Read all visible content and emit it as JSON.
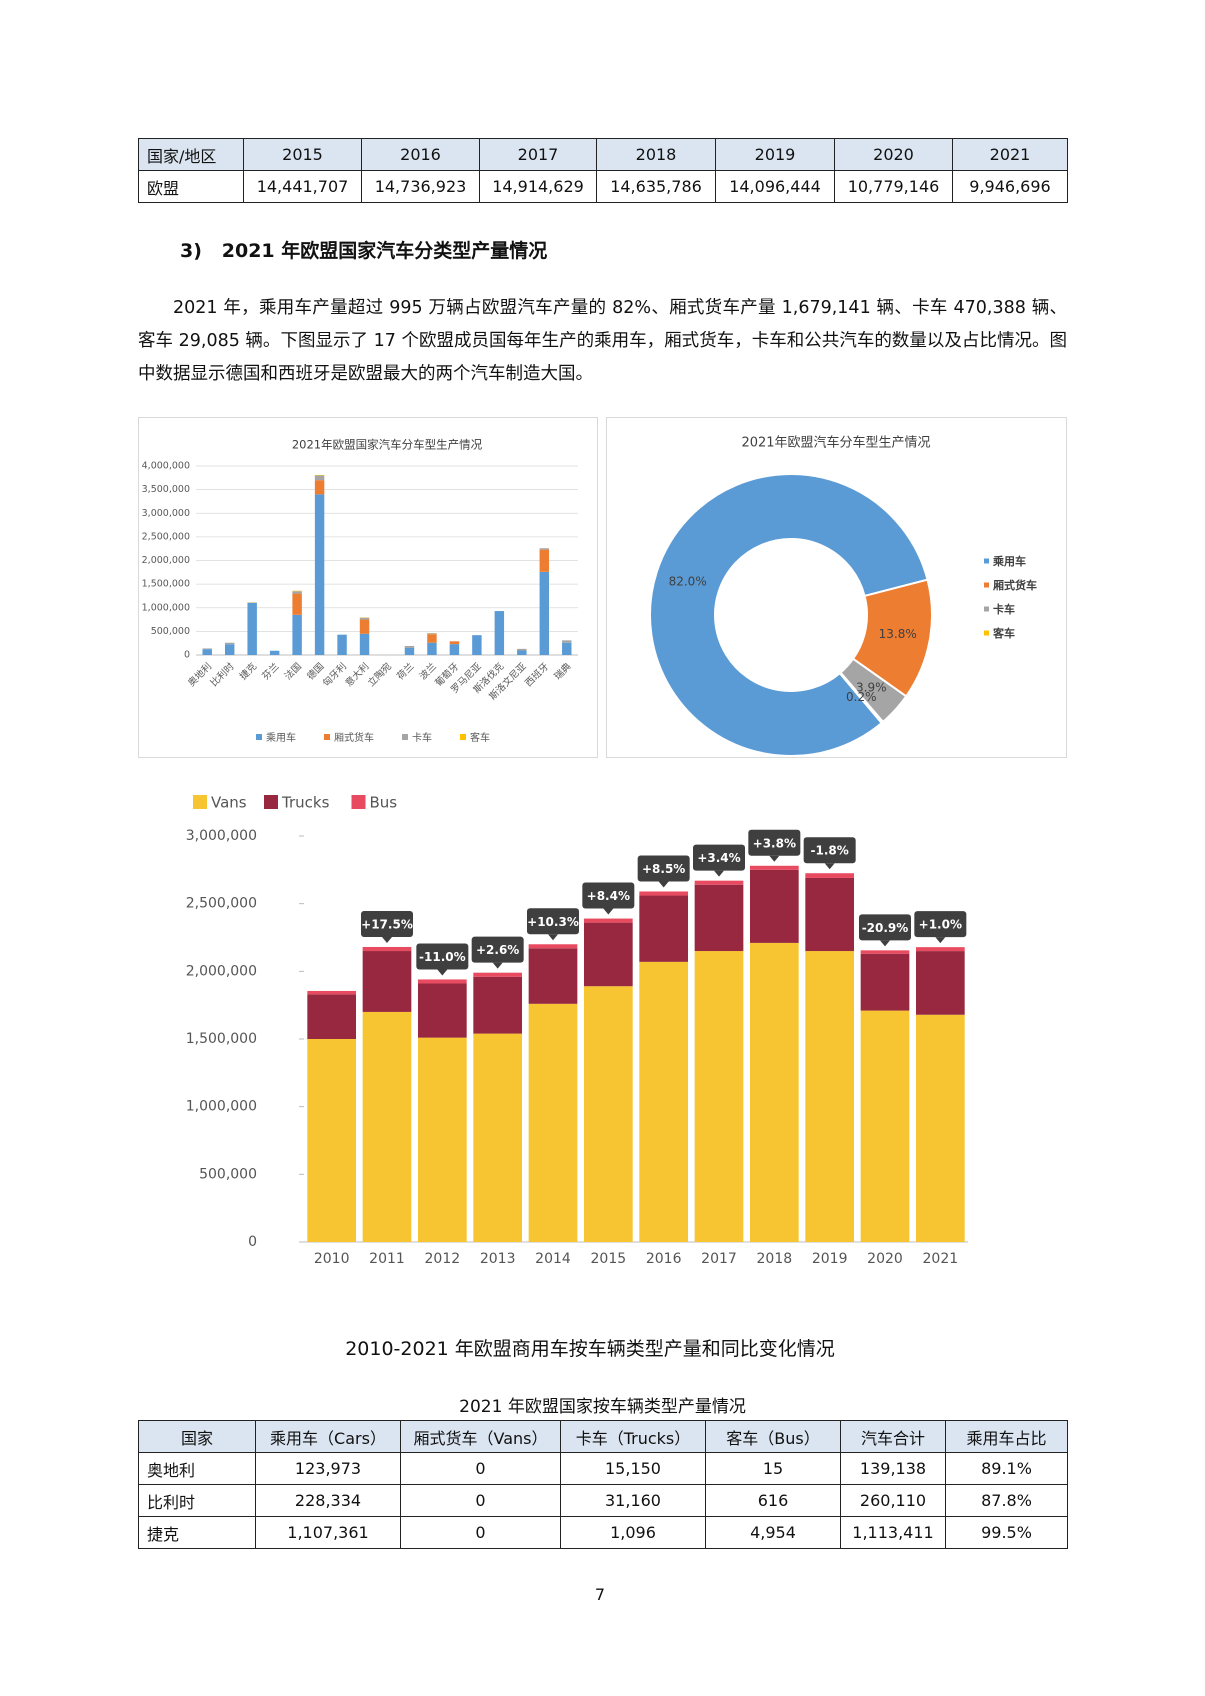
{
  "table1": {
    "header": [
      "国家/地区",
      "2015",
      "2016",
      "2017",
      "2018",
      "2019",
      "2020",
      "2021"
    ],
    "rows": [
      [
        "欧盟",
        "14,441,707",
        "14,736,923",
        "14,914,629",
        "14,635,786",
        "14,096,444",
        "10,779,146",
        "9,946,696"
      ]
    ]
  },
  "section_title": "3)   2021 年欧盟国家汽车分类型产量情况",
  "paragraph": "2021 年，乘用车产量超过 995 万辆占欧盟汽车产量的 82%、厢式货车产量 1,679,141 辆、卡车 470,388 辆、客车 29,085 辆。下图显示了 17 个欧盟成员国每年生产的乘用车，厢式货车，卡车和公共汽车的数量以及占比情况。图中数据显示德国和西班牙是欧盟最大的两个汽车制造大国。",
  "chart_data": [
    {
      "type": "bar",
      "stacked": true,
      "title": "2021年欧盟国家汽车分车型生产情况",
      "categories": [
        "奥地利",
        "比利时",
        "捷克",
        "芬兰",
        "法国",
        "德国",
        "匈牙利",
        "意大利",
        "立陶宛",
        "荷兰",
        "波兰",
        "葡萄牙",
        "罗马尼亚",
        "斯洛伐克",
        "斯洛文尼亚",
        "西班牙",
        "瑞典"
      ],
      "series": [
        {
          "name": "乘用车",
          "color": "#5b9bd5",
          "values": [
            123973,
            228334,
            1107361,
            90000,
            850000,
            3400000,
            430000,
            450000,
            0,
            150000,
            260000,
            230000,
            420000,
            930000,
            95000,
            1760000,
            260000
          ]
        },
        {
          "name": "厢式货车",
          "color": "#ed7d31",
          "values": [
            0,
            0,
            0,
            0,
            450000,
            300000,
            0,
            300000,
            0,
            0,
            180000,
            60000,
            0,
            0,
            0,
            470000,
            0
          ]
        },
        {
          "name": "卡车",
          "color": "#a5a5a5",
          "values": [
            15150,
            31160,
            1096,
            0,
            50000,
            100000,
            0,
            40000,
            0,
            40000,
            20000,
            0,
            0,
            0,
            35000,
            30000,
            50000
          ]
        },
        {
          "name": "客车",
          "color": "#ffc000",
          "values": [
            15,
            616,
            4954,
            0,
            10000,
            10000,
            0,
            5000,
            0,
            0,
            5000,
            0,
            0,
            0,
            0,
            0,
            0
          ]
        }
      ],
      "ylim": [
        0,
        4000000
      ],
      "yticks": [
        0,
        {
          "value": 500000,
          "label": "500,000"
        },
        {
          "value": 1000000,
          "label": "1,000,000"
        },
        {
          "value": 1500000,
          "label": "1,500,000"
        },
        {
          "value": 2000000,
          "label": "2,000,000"
        },
        {
          "value": 2500000,
          "label": "2,500,000"
        },
        {
          "value": 3000000,
          "label": "3,000,000"
        },
        {
          "value": 3500000,
          "label": "3,500,000"
        },
        {
          "value": 4000000,
          "label": "4,000,000"
        }
      ],
      "grid": true,
      "legend": "bottom"
    },
    {
      "type": "pie",
      "donut": true,
      "title": "2021年欧盟汽车分车型生产情况",
      "categories": [
        "乘用车",
        "厢式货车",
        "卡车",
        "客车"
      ],
      "values": [
        82.0,
        13.8,
        3.9,
        0.2
      ],
      "value_labels": [
        "82.0%",
        "13.8%",
        "3.9%",
        "0.2%"
      ],
      "colors": [
        "#5b9bd5",
        "#ed7d31",
        "#a5a5a5",
        "#ffc000"
      ],
      "legend": "right"
    },
    {
      "type": "bar",
      "stacked": true,
      "categories": [
        "2010",
        "2011",
        "2012",
        "2013",
        "2014",
        "2015",
        "2016",
        "2017",
        "2018",
        "2019",
        "2020",
        "2021"
      ],
      "series": [
        {
          "name": "Vans",
          "color": "#f6c531",
          "values": [
            1500000,
            1700000,
            1510000,
            1540000,
            1760000,
            1890000,
            2070000,
            2150000,
            2210000,
            2150000,
            1710000,
            1679141
          ]
        },
        {
          "name": "Trucks",
          "color": "#97283f",
          "values": [
            330000,
            450000,
            400000,
            420000,
            410000,
            470000,
            490000,
            490000,
            540000,
            540000,
            420000,
            470388
          ]
        },
        {
          "name": "Bus",
          "color": "#e84a5f",
          "values": [
            25000,
            30000,
            30000,
            30000,
            30000,
            30000,
            30000,
            30000,
            30000,
            35000,
            25000,
            29085
          ]
        }
      ],
      "annotations": [
        null,
        "+17.5%",
        "-11.0%",
        "+2.6%",
        "+10.3%",
        "+8.4%",
        "+8.5%",
        "+3.4%",
        "+3.8%",
        "-1.8%",
        "-20.9%",
        "+1.0%"
      ],
      "ylim": [
        0,
        3000000
      ],
      "yticks": [
        0,
        {
          "value": 500000,
          "label": "500,000"
        },
        {
          "value": 1000000,
          "label": "1,000,000"
        },
        {
          "value": 1500000,
          "label": "1,500,000"
        },
        {
          "value": 2000000,
          "label": "2,000,000"
        },
        {
          "value": 2500000,
          "label": "2,500,000"
        },
        {
          "value": 3000000,
          "label": "3,000,000"
        }
      ],
      "grid": false,
      "legend": "top-left"
    }
  ],
  "chart_caption": "2010-2021 年欧盟商用车按车辆类型产量和同比变化情况",
  "table2": {
    "title": "2021 年欧盟国家按车辆类型产量情况",
    "header": [
      "国家",
      "乘用车（Cars）",
      "厢式货车（Vans）",
      "卡车（Trucks）",
      "客车（Bus）",
      "汽车合计",
      "乘用车占比"
    ],
    "rows": [
      [
        "奥地利",
        "123,973",
        "0",
        "15,150",
        "15",
        "139,138",
        "89.1%"
      ],
      [
        "比利时",
        "228,334",
        "0",
        "31,160",
        "616",
        "260,110",
        "87.8%"
      ],
      [
        "捷克",
        "1,107,361",
        "0",
        "1,096",
        "4,954",
        "1,113,411",
        "99.5%"
      ]
    ]
  },
  "page_number": "7"
}
